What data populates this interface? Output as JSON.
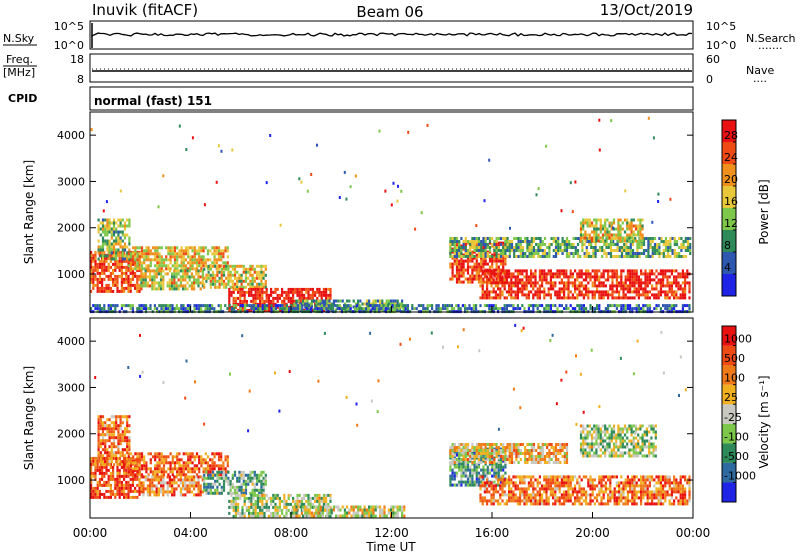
{
  "header": {
    "station": "Inuvik (fitACF)",
    "beam": "Beam 06",
    "date": "13/Oct/2019"
  },
  "top_panels": {
    "nsky": {
      "label": "N.Sky",
      "tick_top": "10^5",
      "tick_bottom": "10^0",
      "right_tick_top": "10^5",
      "right_tick_bottom": "10^0",
      "right_label": "N.Search",
      "right_marker": "......."
    },
    "freq": {
      "label_line1": "Freq.",
      "label_line2": "[MHz]",
      "tick_top": "18",
      "tick_bottom": "8",
      "right_tick_top": "60",
      "right_tick_bottom": "0",
      "right_label": "Nave",
      "right_marker": "...."
    },
    "cpid": {
      "label": "CPID",
      "value": "normal (fast) 151"
    }
  },
  "chart_data": [
    {
      "type": "heatmap",
      "title": "Power",
      "ylabel": "Slant Range [km]",
      "xlabel": "Time UT",
      "ylim": [
        180,
        4500
      ],
      "yticks": [
        "1000",
        "2000",
        "3000",
        "4000"
      ],
      "xticks": [
        "00:00",
        "04:00",
        "08:00",
        "12:00",
        "16:00",
        "20:00",
        "00:00"
      ],
      "colorbar": {
        "label": "Power [dB]",
        "ticks": [
          "4",
          "8",
          "12",
          "16",
          "20",
          "24",
          "28"
        ],
        "colors": [
          "#1e23e6",
          "#2e58b0",
          "#2f8a5a",
          "#7dc84a",
          "#e8c83a",
          "#f0901c",
          "#f04a14",
          "#e81010"
        ]
      },
      "regions": [
        {
          "t": [
            0.0,
            2.0
          ],
          "r": [
            600,
            1500
          ],
          "level": 0.85
        },
        {
          "t": [
            0.3,
            1.6
          ],
          "r": [
            1300,
            2200
          ],
          "level": 0.45
        },
        {
          "t": [
            1.5,
            5.5
          ],
          "r": [
            1100,
            1600
          ],
          "level": 0.6
        },
        {
          "t": [
            2.0,
            4.5
          ],
          "r": [
            700,
            1100
          ],
          "level": 0.55
        },
        {
          "t": [
            4.5,
            7.0
          ],
          "r": [
            700,
            1200
          ],
          "level": 0.55
        },
        {
          "t": [
            5.5,
            9.6
          ],
          "r": [
            200,
            700
          ],
          "level": 0.95
        },
        {
          "t": [
            8.0,
            12.5
          ],
          "r": [
            200,
            450
          ],
          "level": 0.35
        },
        {
          "t": [
            14.3,
            16.5
          ],
          "r": [
            800,
            1700
          ],
          "level": 0.85
        },
        {
          "t": [
            15.5,
            23.9
          ],
          "r": [
            500,
            1100
          ],
          "level": 0.92
        },
        {
          "t": [
            14.3,
            23.9
          ],
          "r": [
            1400,
            1800
          ],
          "level": 0.4
        },
        {
          "t": [
            19.5,
            22.0
          ],
          "r": [
            1700,
            2200
          ],
          "level": 0.55
        },
        {
          "t": [
            0.0,
            23.9
          ],
          "r": [
            180,
            350
          ],
          "level": 0.25
        }
      ]
    },
    {
      "type": "heatmap",
      "title": "Velocity",
      "ylabel": "Slant Range [km]",
      "xlabel": "Time UT",
      "ylim": [
        180,
        4500
      ],
      "yticks": [
        "1000",
        "2000",
        "3000",
        "4000"
      ],
      "xticks": [
        "00:00",
        "04:00",
        "08:00",
        "12:00",
        "16:00",
        "20:00",
        "00:00"
      ],
      "colorbar": {
        "label": "Velocity [m s⁻¹]",
        "ticks": [
          "1000",
          "500",
          "100",
          "25",
          "-25",
          "-100",
          "-500",
          "-1000"
        ],
        "colors": [
          "#1e23e6",
          "#2e6aa0",
          "#2f8a5a",
          "#7dc84a",
          "#c8c8c0",
          "#f0b020",
          "#f07a18",
          "#f04a14",
          "#e81010"
        ]
      },
      "regions": [
        {
          "t": [
            0.0,
            2.0
          ],
          "r": [
            600,
            1500
          ],
          "level": 0.85
        },
        {
          "t": [
            0.3,
            1.6
          ],
          "r": [
            1300,
            2400
          ],
          "level": 0.75
        },
        {
          "t": [
            1.5,
            5.5
          ],
          "r": [
            1100,
            1600
          ],
          "level": 0.8
        },
        {
          "t": [
            2.0,
            4.5
          ],
          "r": [
            700,
            1100
          ],
          "level": 0.7
        },
        {
          "t": [
            4.5,
            7.0
          ],
          "r": [
            700,
            1200
          ],
          "level": 0.35
        },
        {
          "t": [
            5.5,
            9.6
          ],
          "r": [
            200,
            700
          ],
          "level": 0.45
        },
        {
          "t": [
            8.0,
            12.5
          ],
          "r": [
            200,
            450
          ],
          "level": 0.5
        },
        {
          "t": [
            14.3,
            16.5
          ],
          "r": [
            900,
            1700
          ],
          "level": 0.3
        },
        {
          "t": [
            15.5,
            23.9
          ],
          "r": [
            500,
            1100
          ],
          "level": 0.75
        },
        {
          "t": [
            14.3,
            19.0
          ],
          "r": [
            1400,
            1800
          ],
          "level": 0.6
        },
        {
          "t": [
            19.5,
            22.5
          ],
          "r": [
            1500,
            2200
          ],
          "level": 0.45
        }
      ]
    }
  ]
}
